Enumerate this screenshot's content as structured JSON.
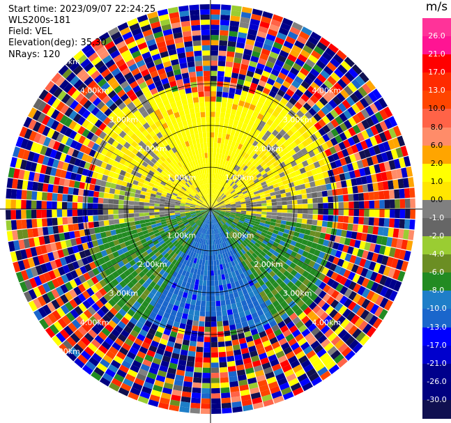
{
  "header": {
    "start_time": "Start time: 2023/09/07 22:24:25",
    "instrument": "WLS200s-181",
    "field": "Field: VEL",
    "elevation": "Elevation(deg): 35.30",
    "nrays": "NRays: 120"
  },
  "chart_data": {
    "type": "heatmap",
    "projection": "polar-ppi",
    "field": "VEL",
    "units": "m/s",
    "elevation_deg": 35.3,
    "n_rays": 120,
    "range_rings_km": [
      1.0,
      2.0,
      3.0
    ],
    "max_range_km": 4.9,
    "ring_labels": [
      "1.00km",
      "2.00km",
      "3.00km"
    ],
    "outer_ring_labels": [
      "4.00km",
      "5.00km"
    ],
    "radial_spokes_deg": [
      0,
      30,
      60,
      90,
      120,
      150,
      180,
      210,
      240,
      270,
      300,
      330
    ],
    "colorbar": {
      "title": "m/s",
      "labels": [
        "26.0",
        "21.0",
        "17.0",
        "13.0",
        "10.0",
        "8.0",
        "6.0",
        "2.0",
        "1.0",
        "0.0",
        "-1.0",
        "-2.0",
        "-4.0",
        "-6.0",
        "-8.0",
        "-10.0",
        "-13.0",
        "-17.0",
        "-21.0",
        "-26.0",
        "-30.0"
      ],
      "colors": [
        "#ff3399",
        "#ff1493",
        "#ff0000",
        "#ff2a00",
        "#ff4500",
        "#ff6347",
        "#ff8c69",
        "#ffa500",
        "#ffff00",
        "#ffe600",
        "#808080",
        "#666666",
        "#9acd32",
        "#6b8e23",
        "#228b22",
        "#1e7ec8",
        "#1a66cc",
        "#0000ff",
        "#0000cd",
        "#00008b",
        "#000080",
        "#101050"
      ]
    },
    "pattern": {
      "near_field_velocity_by_sector": [
        {
          "from_deg": 330,
          "to_deg": 30,
          "velocity_ms": 4.5
        },
        {
          "from_deg": 30,
          "to_deg": 75,
          "velocity_ms": 2.0
        },
        {
          "from_deg": 75,
          "to_deg": 100,
          "velocity_ms": 0.5
        },
        {
          "from_deg": 100,
          "to_deg": 150,
          "velocity_ms": -5.0
        },
        {
          "from_deg": 150,
          "to_deg": 210,
          "velocity_ms": -8.5
        },
        {
          "from_deg": 210,
          "to_deg": 260,
          "velocity_ms": -5.0
        },
        {
          "from_deg": 260,
          "to_deg": 285,
          "velocity_ms": 0.0
        },
        {
          "from_deg": 285,
          "to_deg": 330,
          "velocity_ms": 2.0
        }
      ],
      "noise_begins_km": 2.9
    }
  }
}
